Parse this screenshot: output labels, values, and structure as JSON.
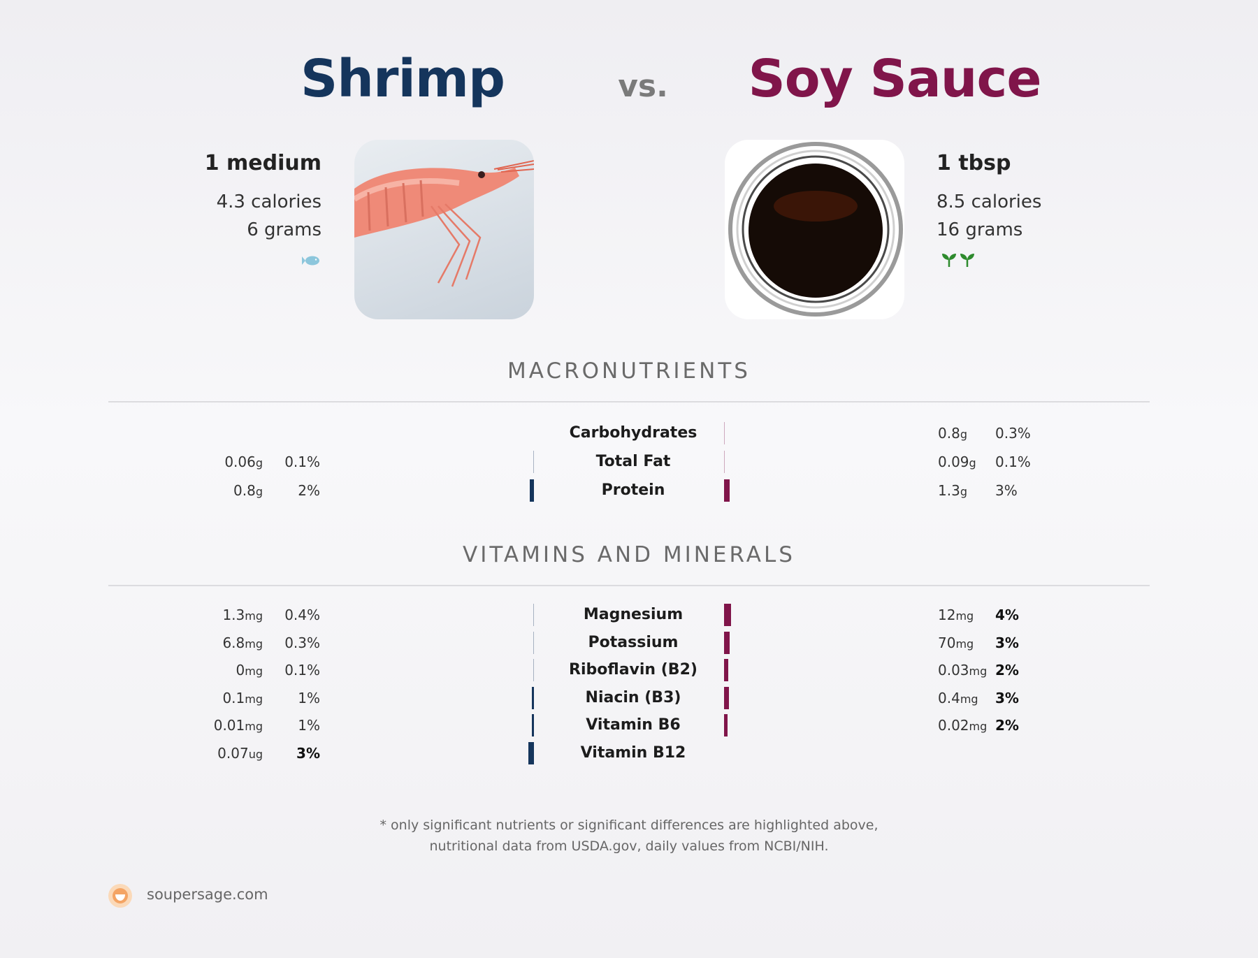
{
  "header": {
    "left_food": "Shrimp",
    "vs": "vs.",
    "right_food": "Soy Sauce",
    "left_color": "#15355c",
    "right_color": "#80154a"
  },
  "left_serving": {
    "amount": "1 medium",
    "calories": "4.3 calories",
    "grams": "6 grams",
    "icon": "fish-icon"
  },
  "right_serving": {
    "amount": "1 tbsp",
    "calories": "8.5 calories",
    "grams": "16 grams",
    "icon": "plant-icon"
  },
  "sections": {
    "macros_title": "MACRONUTRIENTS",
    "vitamins_title": "VITAMINS AND MINERALS"
  },
  "macros": [
    {
      "name": "Carbohydrates",
      "left_value": "",
      "left_unit": "",
      "left_pct": "",
      "left_level": 0,
      "right_value": "0.8",
      "right_unit": "g",
      "right_pct": "0.3%",
      "right_level": 0.3,
      "right_bold": false
    },
    {
      "name": "Total Fat",
      "left_value": "0.06",
      "left_unit": "g",
      "left_pct": "0.1%",
      "left_level": 0.1,
      "right_value": "0.09",
      "right_unit": "g",
      "right_pct": "0.1%",
      "right_level": 0.1,
      "right_bold": false
    },
    {
      "name": "Protein",
      "left_value": "0.8",
      "left_unit": "g",
      "left_pct": "2%",
      "left_level": 2,
      "right_value": "1.3",
      "right_unit": "g",
      "right_pct": "3%",
      "right_level": 3,
      "right_bold": false
    }
  ],
  "vitamins": [
    {
      "name": "Magnesium",
      "left_value": "1.3",
      "left_unit": "mg",
      "left_pct": "0.4%",
      "left_level": 0.4,
      "left_bold": false,
      "right_value": "12",
      "right_unit": "mg",
      "right_pct": "4%",
      "right_level": 4,
      "right_bold": true
    },
    {
      "name": "Potassium",
      "left_value": "6.8",
      "left_unit": "mg",
      "left_pct": "0.3%",
      "left_level": 0.3,
      "left_bold": false,
      "right_value": "70",
      "right_unit": "mg",
      "right_pct": "3%",
      "right_level": 3,
      "right_bold": true
    },
    {
      "name": "Riboflavin (B2)",
      "left_value": "0",
      "left_unit": "mg",
      "left_pct": "0.1%",
      "left_level": 0.1,
      "left_bold": false,
      "right_value": "0.03",
      "right_unit": "mg",
      "right_pct": "2%",
      "right_level": 2.4,
      "right_bold": true
    },
    {
      "name": "Niacin (B3)",
      "left_value": "0.1",
      "left_unit": "mg",
      "left_pct": "1%",
      "left_level": 1,
      "left_bold": false,
      "right_value": "0.4",
      "right_unit": "mg",
      "right_pct": "3%",
      "right_level": 2.6,
      "right_bold": true
    },
    {
      "name": "Vitamin B6",
      "left_value": "0.01",
      "left_unit": "mg",
      "left_pct": "1%",
      "left_level": 1,
      "left_bold": false,
      "right_value": "0.02",
      "right_unit": "mg",
      "right_pct": "2%",
      "right_level": 1.8,
      "right_bold": true
    },
    {
      "name": "Vitamin B12",
      "left_value": "0.07",
      "left_unit": "ug",
      "left_pct": "3%",
      "left_level": 3,
      "left_bold": true,
      "right_value": "",
      "right_unit": "",
      "right_pct": "",
      "right_level": 0,
      "right_bold": false
    }
  ],
  "footer": {
    "note_line1": "* only significant nutrients or significant differences are highlighted above,",
    "note_line2": "nutritional data from USDA.gov, daily values from NCBI/NIH.",
    "brand": "soupersage.com"
  }
}
